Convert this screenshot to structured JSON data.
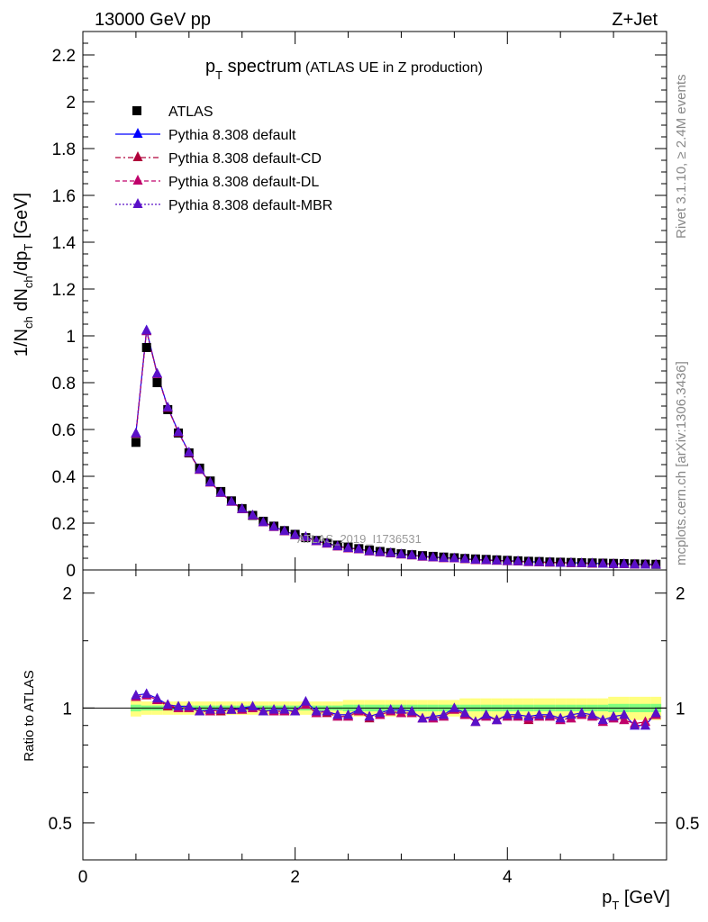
{
  "header": {
    "energy": "13000 GeV pp",
    "process": "Z+Jet"
  },
  "side": {
    "rivet": "Rivet 3.1.10, ≥ 2.4M events",
    "mcplots": "mcplots.cern.ch [arXiv:1306.3436]"
  },
  "watermark": "ATLAS_2019_I1736531",
  "colors": {
    "data": "#000000",
    "default": "#0000ff",
    "cd": "#b0003a",
    "dl": "#c0006a",
    "mbr": "#5a10c8",
    "band_outer": "#ffff7f",
    "band_inner": "#7fff7f"
  },
  "chart_data": [
    {
      "type": "scatter",
      "title_main": "p",
      "title_sub": "T",
      "title_rest": " spectrum",
      "title_paren": "(ATLAS UE in Z production)",
      "ylabel": "1/N",
      "ylabel_ch1": "ch",
      "ylabel_mid": " dN",
      "ylabel_ch2": "ch",
      "ylabel_dp": "/dp",
      "ylabel_t": "T",
      "ylabel_unit": " [GeV]",
      "xlim": [
        0,
        5.5
      ],
      "ylim": [
        0,
        2.3
      ],
      "yticks": [
        0,
        0.2,
        0.4,
        0.6,
        0.8,
        1,
        1.2,
        1.4,
        1.6,
        1.8,
        2,
        2.2
      ],
      "ytick_labels": [
        "0",
        "0.2",
        "0.4",
        "0.6",
        "0.8",
        "1",
        "1.2",
        "1.4",
        "1.6",
        "1.8",
        "2",
        "2.2"
      ],
      "legend_position": "top-left",
      "legend": [
        "ATLAS",
        "Pythia 8.308 default",
        "Pythia 8.308 default-CD",
        "Pythia 8.308 default-DL",
        "Pythia 8.308 default-MBR"
      ],
      "x": [
        0.5,
        0.6,
        0.7,
        0.8,
        0.9,
        1.0,
        1.1,
        1.2,
        1.3,
        1.4,
        1.5,
        1.6,
        1.7,
        1.8,
        1.9,
        2.0,
        2.1,
        2.2,
        2.3,
        2.4,
        2.5,
        2.6,
        2.7,
        2.8,
        2.9,
        3.0,
        3.1,
        3.2,
        3.3,
        3.4,
        3.5,
        3.6,
        3.7,
        3.8,
        3.9,
        4.0,
        4.1,
        4.2,
        4.3,
        4.4,
        4.5,
        4.6,
        4.7,
        4.8,
        4.9,
        5.0,
        5.1,
        5.2,
        5.3,
        5.4
      ],
      "series": [
        {
          "name": "ATLAS",
          "values": [
            0.545,
            0.95,
            0.8,
            0.685,
            0.585,
            0.5,
            0.435,
            0.38,
            0.335,
            0.295,
            0.262,
            0.233,
            0.208,
            0.187,
            0.168,
            0.152,
            0.138,
            0.126,
            0.116,
            0.106,
            0.098,
            0.091,
            0.085,
            0.079,
            0.074,
            0.069,
            0.065,
            0.061,
            0.058,
            0.055,
            0.052,
            0.049,
            0.047,
            0.045,
            0.043,
            0.041,
            0.039,
            0.037,
            0.036,
            0.034,
            0.033,
            0.032,
            0.031,
            0.03,
            0.029,
            0.028,
            0.027,
            0.026,
            0.025,
            0.024
          ]
        },
        {
          "name": "Pythia 8.308 default",
          "values": [
            0.585,
            1.025,
            0.84,
            0.695,
            0.59,
            0.503,
            0.43,
            0.375,
            0.331,
            0.293,
            0.261,
            0.234,
            0.205,
            0.185,
            0.167,
            0.15,
            0.142,
            0.124,
            0.114,
            0.102,
            0.094,
            0.09,
            0.081,
            0.077,
            0.073,
            0.068,
            0.064,
            0.058,
            0.055,
            0.052,
            0.051,
            0.048,
            0.044,
            0.043,
            0.041,
            0.039,
            0.038,
            0.035,
            0.034,
            0.033,
            0.031,
            0.031,
            0.03,
            0.029,
            0.027,
            0.026,
            0.026,
            0.024,
            0.023,
            0.023
          ]
        },
        {
          "name": "Pythia 8.308 default-CD",
          "values": [
            0.582,
            1.02,
            0.837,
            0.693,
            0.588,
            0.501,
            0.428,
            0.374,
            0.33,
            0.292,
            0.26,
            0.233,
            0.204,
            0.184,
            0.166,
            0.149,
            0.141,
            0.123,
            0.113,
            0.101,
            0.093,
            0.089,
            0.08,
            0.076,
            0.072,
            0.067,
            0.063,
            0.057,
            0.054,
            0.051,
            0.05,
            0.047,
            0.043,
            0.042,
            0.04,
            0.038,
            0.037,
            0.034,
            0.033,
            0.032,
            0.031,
            0.03,
            0.029,
            0.028,
            0.027,
            0.026,
            0.025,
            0.024,
            0.023,
            0.023
          ]
        },
        {
          "name": "Pythia 8.308 default-DL",
          "values": [
            0.583,
            1.022,
            0.838,
            0.694,
            0.589,
            0.502,
            0.429,
            0.374,
            0.33,
            0.292,
            0.26,
            0.233,
            0.204,
            0.184,
            0.166,
            0.149,
            0.141,
            0.123,
            0.113,
            0.101,
            0.093,
            0.089,
            0.08,
            0.076,
            0.072,
            0.067,
            0.063,
            0.057,
            0.054,
            0.051,
            0.05,
            0.047,
            0.043,
            0.042,
            0.04,
            0.038,
            0.037,
            0.034,
            0.033,
            0.032,
            0.031,
            0.03,
            0.029,
            0.028,
            0.027,
            0.026,
            0.025,
            0.024,
            0.023,
            0.023
          ]
        },
        {
          "name": "Pythia 8.308 default-MBR",
          "values": [
            0.584,
            1.023,
            0.839,
            0.695,
            0.59,
            0.503,
            0.43,
            0.375,
            0.331,
            0.293,
            0.261,
            0.234,
            0.205,
            0.185,
            0.167,
            0.15,
            0.142,
            0.124,
            0.114,
            0.102,
            0.094,
            0.09,
            0.081,
            0.077,
            0.073,
            0.068,
            0.064,
            0.058,
            0.055,
            0.052,
            0.051,
            0.048,
            0.044,
            0.043,
            0.041,
            0.039,
            0.038,
            0.035,
            0.034,
            0.033,
            0.031,
            0.031,
            0.03,
            0.029,
            0.027,
            0.026,
            0.026,
            0.024,
            0.023,
            0.023
          ]
        }
      ]
    },
    {
      "type": "scatter",
      "ylabel": "Ratio to ATLAS",
      "xlabel_main": "p",
      "xlabel_sub": "T",
      "xlabel_unit": " [GeV]",
      "scale": "log",
      "xlim": [
        0,
        5.5
      ],
      "ylim": [
        0.4,
        2.3
      ],
      "yticks": [
        0.5,
        1,
        2
      ],
      "ytick_labels": [
        "0.5",
        "1",
        "2"
      ],
      "xticks": [
        0,
        2,
        4
      ],
      "xtick_labels": [
        "0",
        "2",
        "4"
      ],
      "x": [
        0.5,
        0.6,
        0.7,
        0.8,
        0.9,
        1.0,
        1.1,
        1.2,
        1.3,
        1.4,
        1.5,
        1.6,
        1.7,
        1.8,
        1.9,
        2.0,
        2.1,
        2.2,
        2.3,
        2.4,
        2.5,
        2.6,
        2.7,
        2.8,
        2.9,
        3.0,
        3.1,
        3.2,
        3.3,
        3.4,
        3.5,
        3.6,
        3.7,
        3.8,
        3.9,
        4.0,
        4.1,
        4.2,
        4.3,
        4.4,
        4.5,
        4.6,
        4.7,
        4.8,
        4.9,
        5.0,
        5.1,
        5.2,
        5.3,
        5.4
      ],
      "band_outer": [
        0.05,
        0.04,
        0.04,
        0.04,
        0.04,
        0.04,
        0.04,
        0.04,
        0.04,
        0.04,
        0.04,
        0.04,
        0.04,
        0.04,
        0.04,
        0.04,
        0.04,
        0.04,
        0.04,
        0.04,
        0.05,
        0.05,
        0.05,
        0.05,
        0.05,
        0.05,
        0.05,
        0.05,
        0.05,
        0.05,
        0.05,
        0.06,
        0.06,
        0.06,
        0.06,
        0.06,
        0.06,
        0.06,
        0.06,
        0.06,
        0.06,
        0.06,
        0.06,
        0.06,
        0.06,
        0.07,
        0.07,
        0.07,
        0.07,
        0.07
      ],
      "band_inner": [
        0.02,
        0.015,
        0.015,
        0.015,
        0.015,
        0.015,
        0.015,
        0.015,
        0.015,
        0.015,
        0.015,
        0.015,
        0.015,
        0.015,
        0.015,
        0.015,
        0.015,
        0.015,
        0.015,
        0.015,
        0.02,
        0.02,
        0.02,
        0.02,
        0.02,
        0.02,
        0.02,
        0.02,
        0.02,
        0.02,
        0.02,
        0.02,
        0.02,
        0.02,
        0.02,
        0.02,
        0.02,
        0.02,
        0.02,
        0.02,
        0.02,
        0.02,
        0.02,
        0.02,
        0.02,
        0.025,
        0.025,
        0.025,
        0.025,
        0.025
      ],
      "series": [
        {
          "name": "Pythia 8.308 default",
          "values": [
            1.08,
            1.09,
            1.06,
            1.02,
            1.01,
            1.01,
            0.98,
            0.99,
            0.99,
            0.99,
            1.0,
            1.01,
            0.98,
            0.99,
            0.99,
            0.98,
            1.04,
            0.98,
            0.98,
            0.96,
            0.96,
            0.99,
            0.95,
            0.97,
            0.99,
            0.99,
            0.98,
            0.94,
            0.95,
            0.96,
            1.0,
            0.97,
            0.92,
            0.96,
            0.93,
            0.96,
            0.96,
            0.95,
            0.96,
            0.96,
            0.94,
            0.96,
            0.97,
            0.96,
            0.93,
            0.95,
            0.96,
            0.9,
            0.9,
            0.97
          ]
        },
        {
          "name": "Pythia 8.308 default-CD",
          "values": [
            1.07,
            1.08,
            1.05,
            1.01,
            1.0,
            1.0,
            0.98,
            0.98,
            0.98,
            0.99,
            0.99,
            1.0,
            0.98,
            0.98,
            0.98,
            0.98,
            1.02,
            0.97,
            0.97,
            0.95,
            0.95,
            0.98,
            0.94,
            0.96,
            0.98,
            0.97,
            0.97,
            0.94,
            0.94,
            0.95,
            0.99,
            0.96,
            0.92,
            0.95,
            0.93,
            0.95,
            0.95,
            0.93,
            0.95,
            0.95,
            0.93,
            0.94,
            0.96,
            0.95,
            0.92,
            0.94,
            0.93,
            0.91,
            0.92,
            0.96
          ]
        },
        {
          "name": "Pythia 8.308 default-DL",
          "values": [
            1.07,
            1.08,
            1.05,
            1.02,
            1.0,
            1.0,
            0.98,
            0.98,
            0.99,
            0.99,
            0.99,
            1.0,
            0.98,
            0.98,
            0.98,
            0.98,
            1.02,
            0.97,
            0.98,
            0.95,
            0.95,
            0.98,
            0.95,
            0.96,
            0.98,
            0.97,
            0.97,
            0.94,
            0.94,
            0.95,
            0.99,
            0.96,
            0.92,
            0.95,
            0.93,
            0.95,
            0.95,
            0.94,
            0.95,
            0.95,
            0.93,
            0.94,
            0.96,
            0.95,
            0.92,
            0.94,
            0.93,
            0.91,
            0.92,
            0.96
          ]
        },
        {
          "name": "Pythia 8.308 default-MBR",
          "values": [
            1.08,
            1.09,
            1.06,
            1.02,
            1.01,
            1.01,
            0.98,
            0.99,
            0.99,
            0.99,
            1.0,
            1.01,
            0.98,
            0.99,
            0.99,
            0.98,
            1.04,
            0.98,
            0.98,
            0.96,
            0.96,
            0.99,
            0.95,
            0.97,
            0.99,
            0.99,
            0.98,
            0.94,
            0.95,
            0.96,
            1.0,
            0.97,
            0.92,
            0.96,
            0.93,
            0.96,
            0.96,
            0.95,
            0.96,
            0.96,
            0.94,
            0.96,
            0.97,
            0.96,
            0.93,
            0.95,
            0.96,
            0.9,
            0.9,
            0.97
          ]
        }
      ]
    }
  ]
}
